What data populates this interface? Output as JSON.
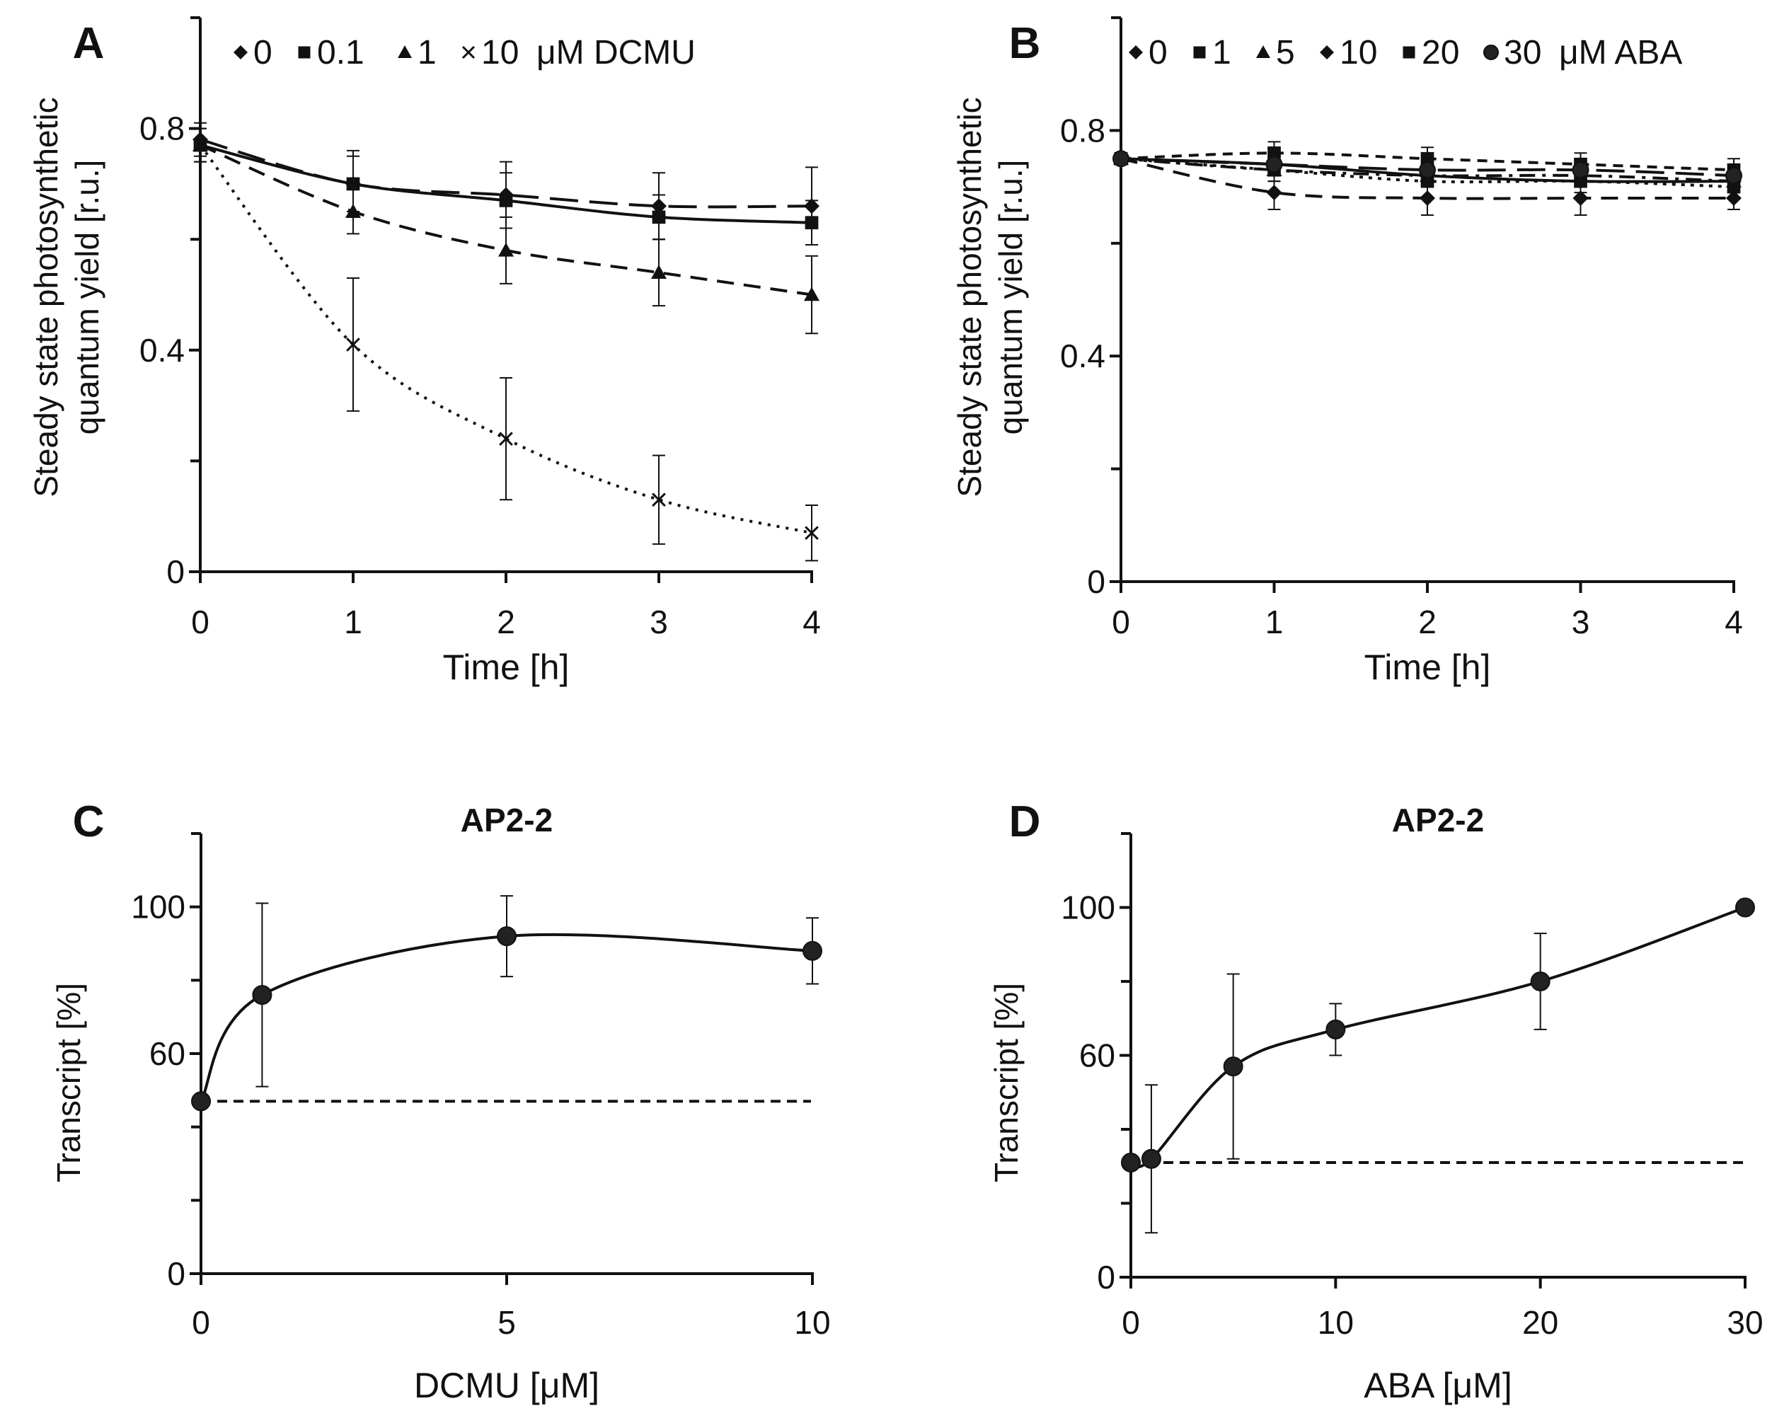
{
  "chart_data": [
    {
      "panel": "A",
      "type": "line",
      "title": "",
      "xlabel": "Time [h]",
      "ylabel_lines": [
        "Steady state photosynthetic",
        "quantum yield [r.u.]"
      ],
      "xlim": [
        0,
        4
      ],
      "ylim": [
        0,
        1.0
      ],
      "xticks": [
        0,
        1,
        2,
        3,
        4
      ],
      "yticks": [
        0,
        0.4,
        0.8
      ],
      "ytick_labels": [
        "0",
        "0.4",
        "0.8"
      ],
      "minor_yticks": [
        0.2,
        0.6,
        1.0
      ],
      "legend_suffix": "μM DCMU",
      "x": [
        0,
        1,
        2,
        3,
        4
      ],
      "series": [
        {
          "name": "0",
          "marker": "diamond",
          "style": "longdash",
          "values": [
            0.78,
            0.7,
            0.68,
            0.66,
            0.66
          ],
          "err": [
            0.03,
            0.06,
            0.06,
            0.06,
            0.07
          ]
        },
        {
          "name": "0.1",
          "marker": "square",
          "style": "solid",
          "values": [
            0.77,
            0.7,
            0.67,
            0.64,
            0.63
          ],
          "err": [
            0.03,
            0.05,
            0.05,
            0.04,
            0.04
          ]
        },
        {
          "name": "1",
          "marker": "triangle",
          "style": "dash",
          "values": [
            0.77,
            0.65,
            0.58,
            0.54,
            0.5
          ],
          "err": [
            0.03,
            0.04,
            0.06,
            0.06,
            0.07
          ]
        },
        {
          "name": "10",
          "marker": "x",
          "style": "dot",
          "values": [
            0.77,
            0.41,
            0.24,
            0.13,
            0.07
          ],
          "err": [
            0.03,
            0.12,
            0.11,
            0.08,
            0.05
          ]
        }
      ]
    },
    {
      "panel": "B",
      "type": "line",
      "title": "",
      "xlabel": "Time [h]",
      "ylabel_lines": [
        "Steady state photosynthetic",
        "quantum yield [r.u.]"
      ],
      "xlim": [
        0,
        4
      ],
      "ylim": [
        0,
        1.0
      ],
      "xticks": [
        0,
        1,
        2,
        3,
        4
      ],
      "yticks": [
        0,
        0.4,
        0.8
      ],
      "ytick_labels": [
        "0",
        "0.4",
        "0.8"
      ],
      "minor_yticks": [
        0.2,
        0.6,
        1.0
      ],
      "legend_suffix": "μM ABA",
      "x": [
        0,
        1,
        2,
        3,
        4
      ],
      "series": [
        {
          "name": "0",
          "marker": "diamond",
          "style": "solid",
          "values": [
            0.75,
            0.74,
            0.72,
            0.71,
            0.71
          ],
          "err": [
            0.01,
            0.02,
            0.02,
            0.02,
            0.02
          ]
        },
        {
          "name": "1",
          "marker": "square",
          "style": "shortdash",
          "values": [
            0.75,
            0.76,
            0.75,
            0.74,
            0.73
          ],
          "err": [
            0.01,
            0.02,
            0.02,
            0.02,
            0.02
          ]
        },
        {
          "name": "5",
          "marker": "triangle",
          "style": "dashdot",
          "values": [
            0.75,
            0.73,
            0.72,
            0.72,
            0.71
          ],
          "err": [
            0.01,
            0.02,
            0.02,
            0.02,
            0.02
          ]
        },
        {
          "name": "10",
          "marker": "diamond",
          "style": "dash",
          "values": [
            0.75,
            0.69,
            0.68,
            0.68,
            0.68
          ],
          "err": [
            0.01,
            0.03,
            0.03,
            0.03,
            0.02
          ]
        },
        {
          "name": "20",
          "marker": "square",
          "style": "dotted",
          "values": [
            0.75,
            0.73,
            0.71,
            0.71,
            0.7
          ],
          "err": [
            0.01,
            0.02,
            0.03,
            0.03,
            0.02
          ]
        },
        {
          "name": "30",
          "marker": "circle",
          "style": "longdash",
          "values": [
            0.75,
            0.74,
            0.73,
            0.73,
            0.72
          ],
          "err": [
            0.01,
            0.02,
            0.02,
            0.02,
            0.02
          ]
        }
      ]
    },
    {
      "panel": "C",
      "type": "scatter",
      "title": "AP2-2",
      "xlabel": "DCMU  [μM]",
      "ylabel_lines": [
        "Transcript [%]"
      ],
      "xlim": [
        0,
        10
      ],
      "ylim": [
        0,
        120
      ],
      "xticks": [
        0,
        5,
        10
      ],
      "yticks": [
        0,
        60,
        100
      ],
      "ytick_labels": [
        "0",
        "60",
        "100"
      ],
      "minor_yticks": [
        20,
        40,
        80,
        120
      ],
      "x": [
        0,
        1,
        5,
        10
      ],
      "series": [
        {
          "name": "AP2-2",
          "marker": "circle",
          "style": "solid",
          "values": [
            47,
            76,
            92,
            88
          ],
          "err": [
            0,
            25,
            11,
            9
          ]
        }
      ],
      "baseline": 47
    },
    {
      "panel": "D",
      "type": "scatter",
      "title": "AP2-2",
      "xlabel": "ABA [μM]",
      "ylabel_lines": [
        "Transcript [%]"
      ],
      "xlim": [
        0,
        30
      ],
      "ylim": [
        0,
        120
      ],
      "xticks": [
        0,
        10,
        20,
        30
      ],
      "yticks": [
        0,
        60,
        100
      ],
      "ytick_labels": [
        "0",
        "60",
        "100"
      ],
      "minor_yticks": [
        20,
        40,
        80,
        120
      ],
      "x": [
        0,
        1,
        5,
        10,
        20,
        30
      ],
      "series": [
        {
          "name": "AP2-2",
          "marker": "circle",
          "style": "solid",
          "values": [
            31,
            32,
            57,
            67,
            80,
            100
          ],
          "err": [
            0,
            20,
            25,
            7,
            13,
            0
          ]
        }
      ],
      "baseline": 31
    }
  ]
}
